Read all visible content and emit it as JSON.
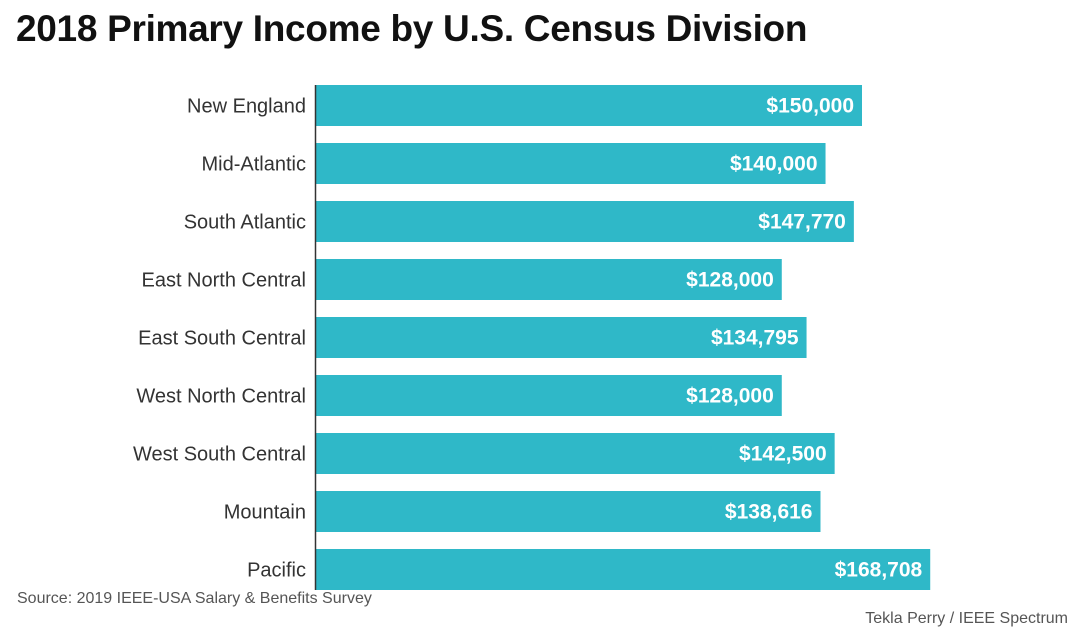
{
  "chart_data": {
    "type": "bar",
    "orientation": "horizontal",
    "title": "2018 Primary Income by U.S. Census Division",
    "categories": [
      "New England",
      "Mid-Atlantic",
      "South Atlantic",
      "East North Central",
      "East South Central",
      "West North Central",
      "West South Central",
      "Mountain",
      "Pacific"
    ],
    "values": [
      150000,
      140000,
      147770,
      128000,
      134795,
      128000,
      142500,
      138616,
      168708
    ],
    "value_labels": [
      "$150,000",
      "$140,000",
      "$147,770",
      "$128,000",
      "$134,795",
      "$128,000",
      "$142,500",
      "$138,616",
      "$168,708"
    ],
    "bar_color": "#2FB8C8",
    "axis_line_color": "#333333",
    "grid": false,
    "legend": "none"
  },
  "footer": {
    "source": "Source: 2019 IEEE-USA Salary & Benefits Survey",
    "credit": "Tekla Perry / IEEE Spectrum"
  }
}
